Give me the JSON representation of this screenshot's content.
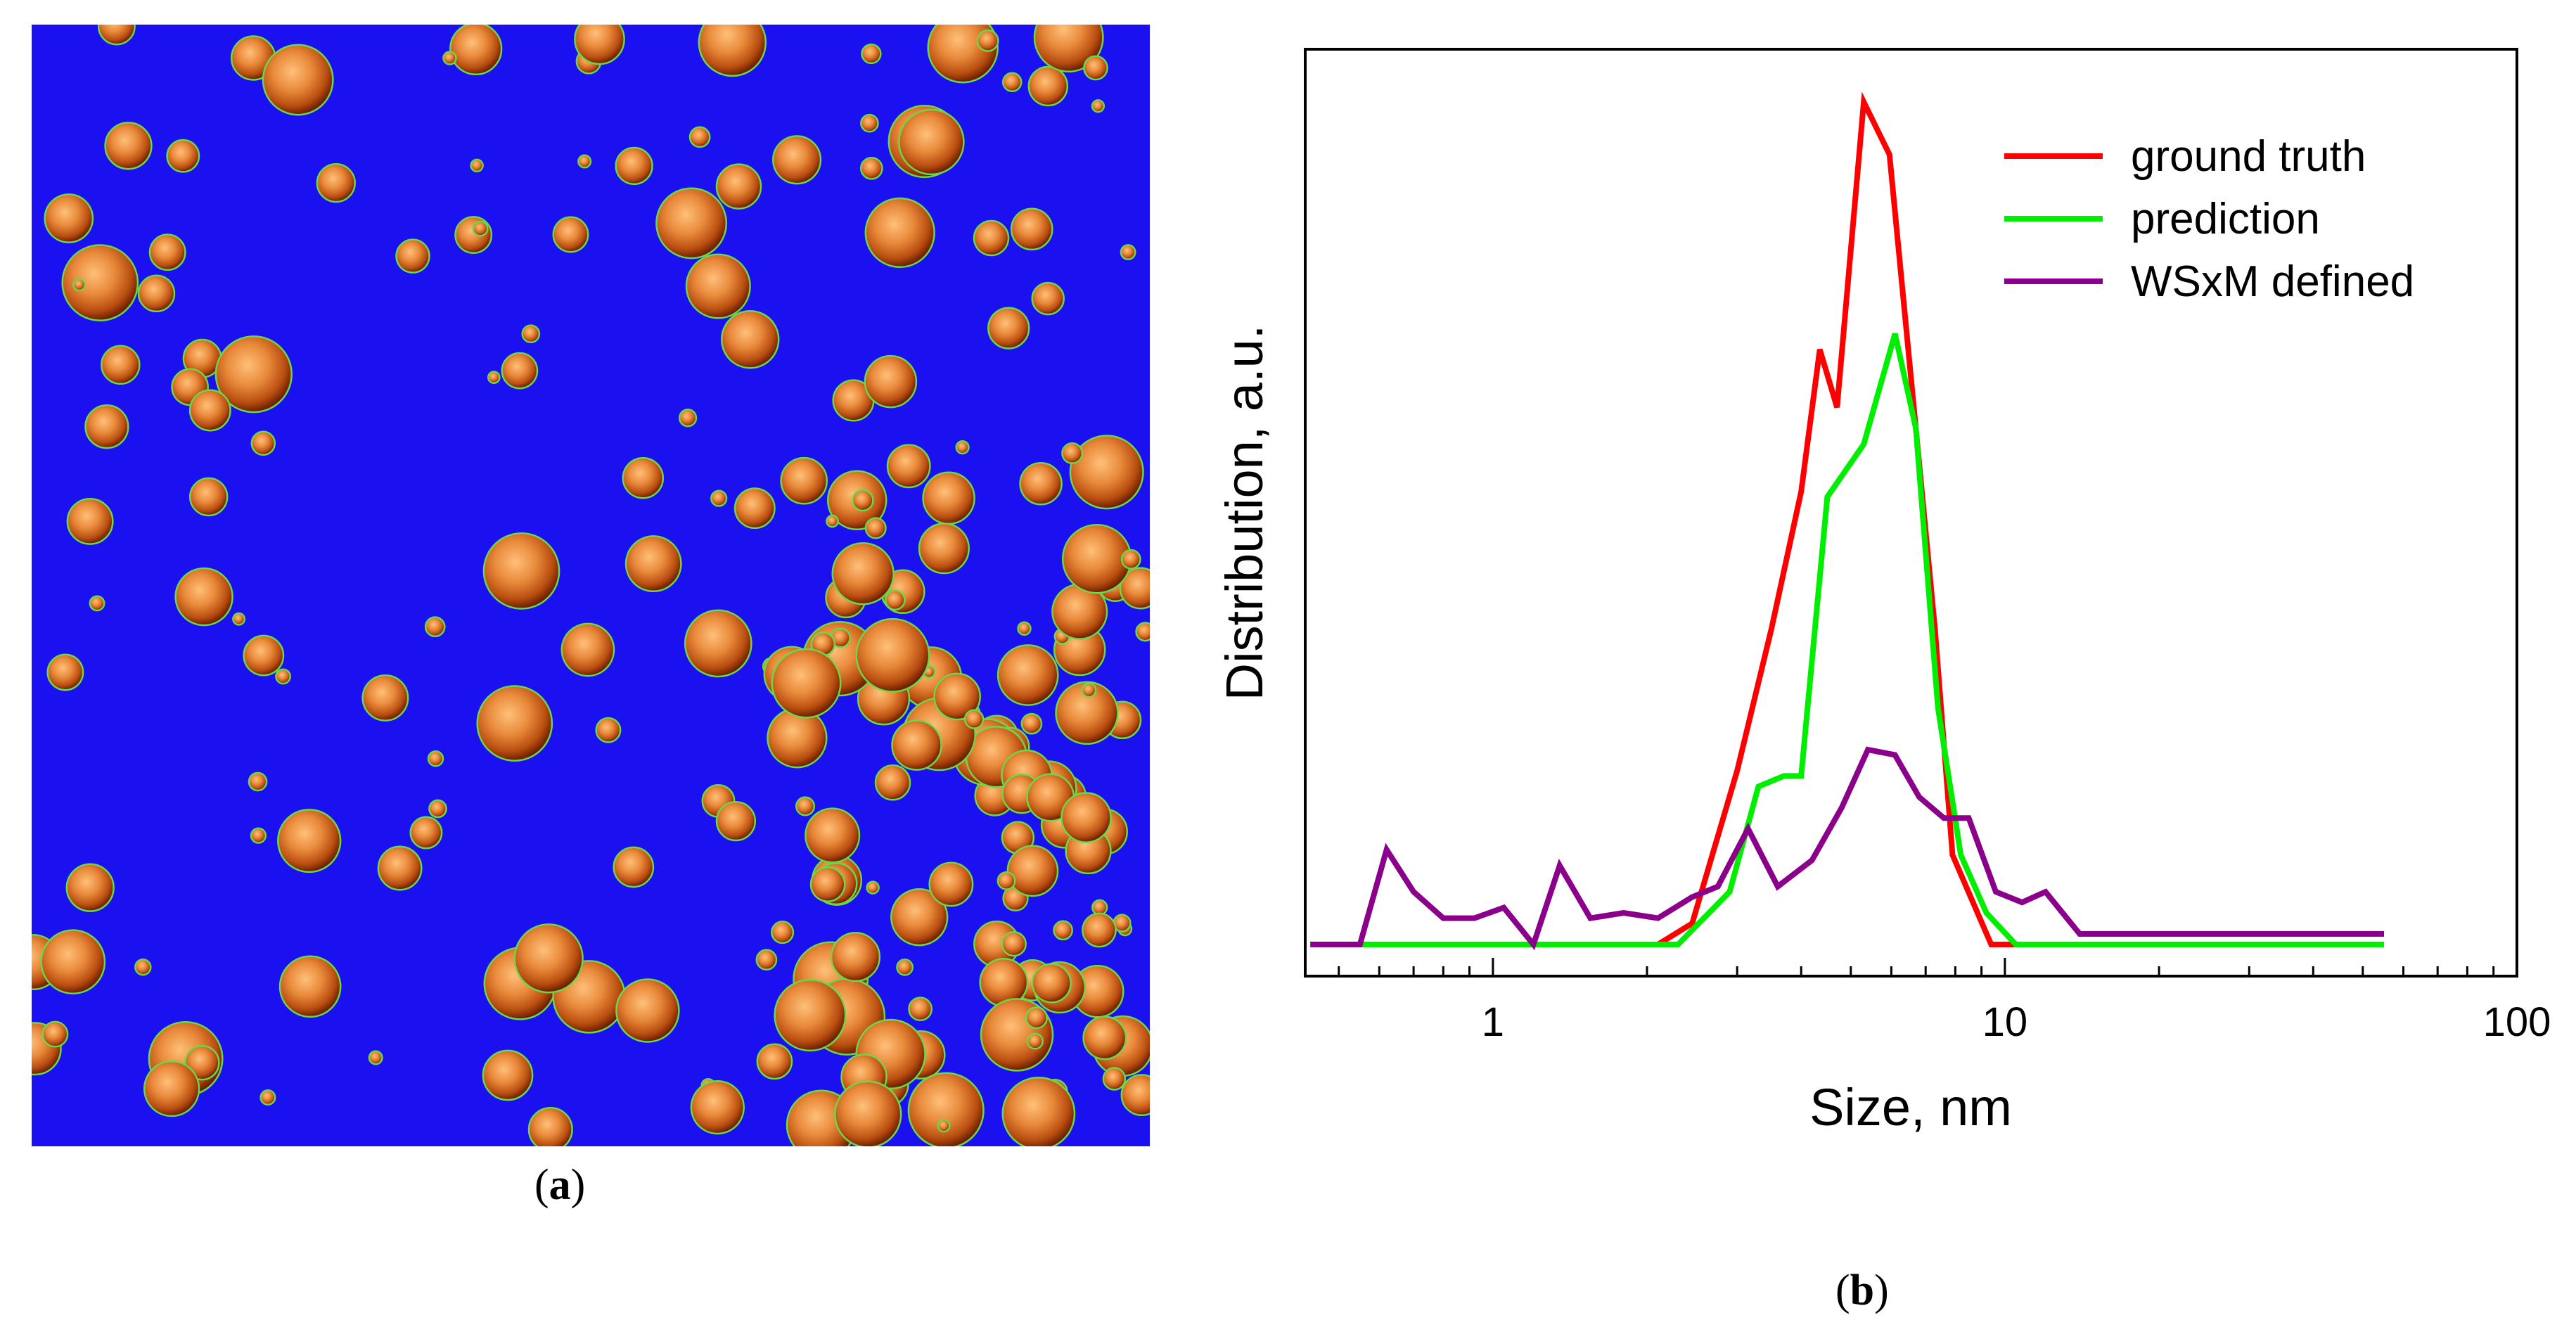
{
  "panels": {
    "a": {
      "label": "a",
      "caption_open": "(",
      "caption_close": ")"
    },
    "b": {
      "label": "b",
      "caption_open": "(",
      "caption_close": ")"
    }
  },
  "afm_image": {
    "background_color": "#1a10f0",
    "particle_outline_color": "#6bd84a",
    "particle_colors": [
      "#6b1f00",
      "#b84d10",
      "#e8893a",
      "#ffc07a"
    ]
  },
  "chart_data": {
    "type": "line",
    "x_scale": "log",
    "xlim": [
      0.43,
      100
    ],
    "ylim": [
      0,
      1.15
    ],
    "xlabel": "Size, nm",
    "ylabel": "Distribution, a.u.",
    "x_ticks": [
      1,
      10,
      100
    ],
    "x_tick_labels": [
      "1",
      "10",
      "100"
    ],
    "y_ticks": [],
    "legend_position": "top-right",
    "series": [
      {
        "name": "ground truth",
        "color": "#ff0000",
        "x": [
          0.44,
          2.1,
          2.45,
          3.0,
          3.5,
          4.0,
          4.35,
          4.7,
          5.3,
          5.95,
          6.7,
          7.3,
          7.9,
          9.4,
          55
        ],
        "y": [
          0,
          0,
          0.04,
          0.33,
          0.6,
          0.86,
          1.13,
          1.02,
          1.6,
          1.5,
          0.98,
          0.6,
          0.17,
          0,
          0
        ]
      },
      {
        "name": "prediction",
        "color": "#00ee00",
        "x": [
          0.44,
          2.3,
          2.9,
          3.3,
          3.7,
          4.0,
          4.5,
          5.3,
          6.1,
          6.7,
          7.4,
          8.2,
          9.2,
          10.5,
          55
        ],
        "y": [
          0,
          0,
          0.1,
          0.3,
          0.32,
          0.32,
          0.85,
          0.95,
          1.16,
          0.98,
          0.45,
          0.17,
          0.06,
          0,
          0
        ]
      },
      {
        "name": "WSxM defined",
        "color": "#8b008b",
        "x": [
          0.44,
          0.55,
          0.62,
          0.7,
          0.8,
          0.92,
          1.05,
          1.2,
          1.35,
          1.55,
          1.8,
          2.1,
          2.45,
          2.75,
          3.15,
          3.6,
          4.2,
          4.8,
          5.4,
          6.1,
          6.8,
          7.6,
          8.5,
          9.6,
          10.8,
          12,
          14,
          17,
          20,
          24,
          27,
          30,
          35,
          42,
          50,
          55
        ],
        "y": [
          0,
          0,
          0.18,
          0.1,
          0.05,
          0.05,
          0.07,
          0,
          0.15,
          0.05,
          0.06,
          0.05,
          0.09,
          0.11,
          0.22,
          0.11,
          0.16,
          0.26,
          0.37,
          0.36,
          0.28,
          0.24,
          0.24,
          0.1,
          0.08,
          0.1,
          0.02,
          0.02,
          0.02,
          0.02,
          0.02,
          0.02,
          0.02,
          0.02,
          0.02,
          0.02
        ]
      }
    ]
  }
}
